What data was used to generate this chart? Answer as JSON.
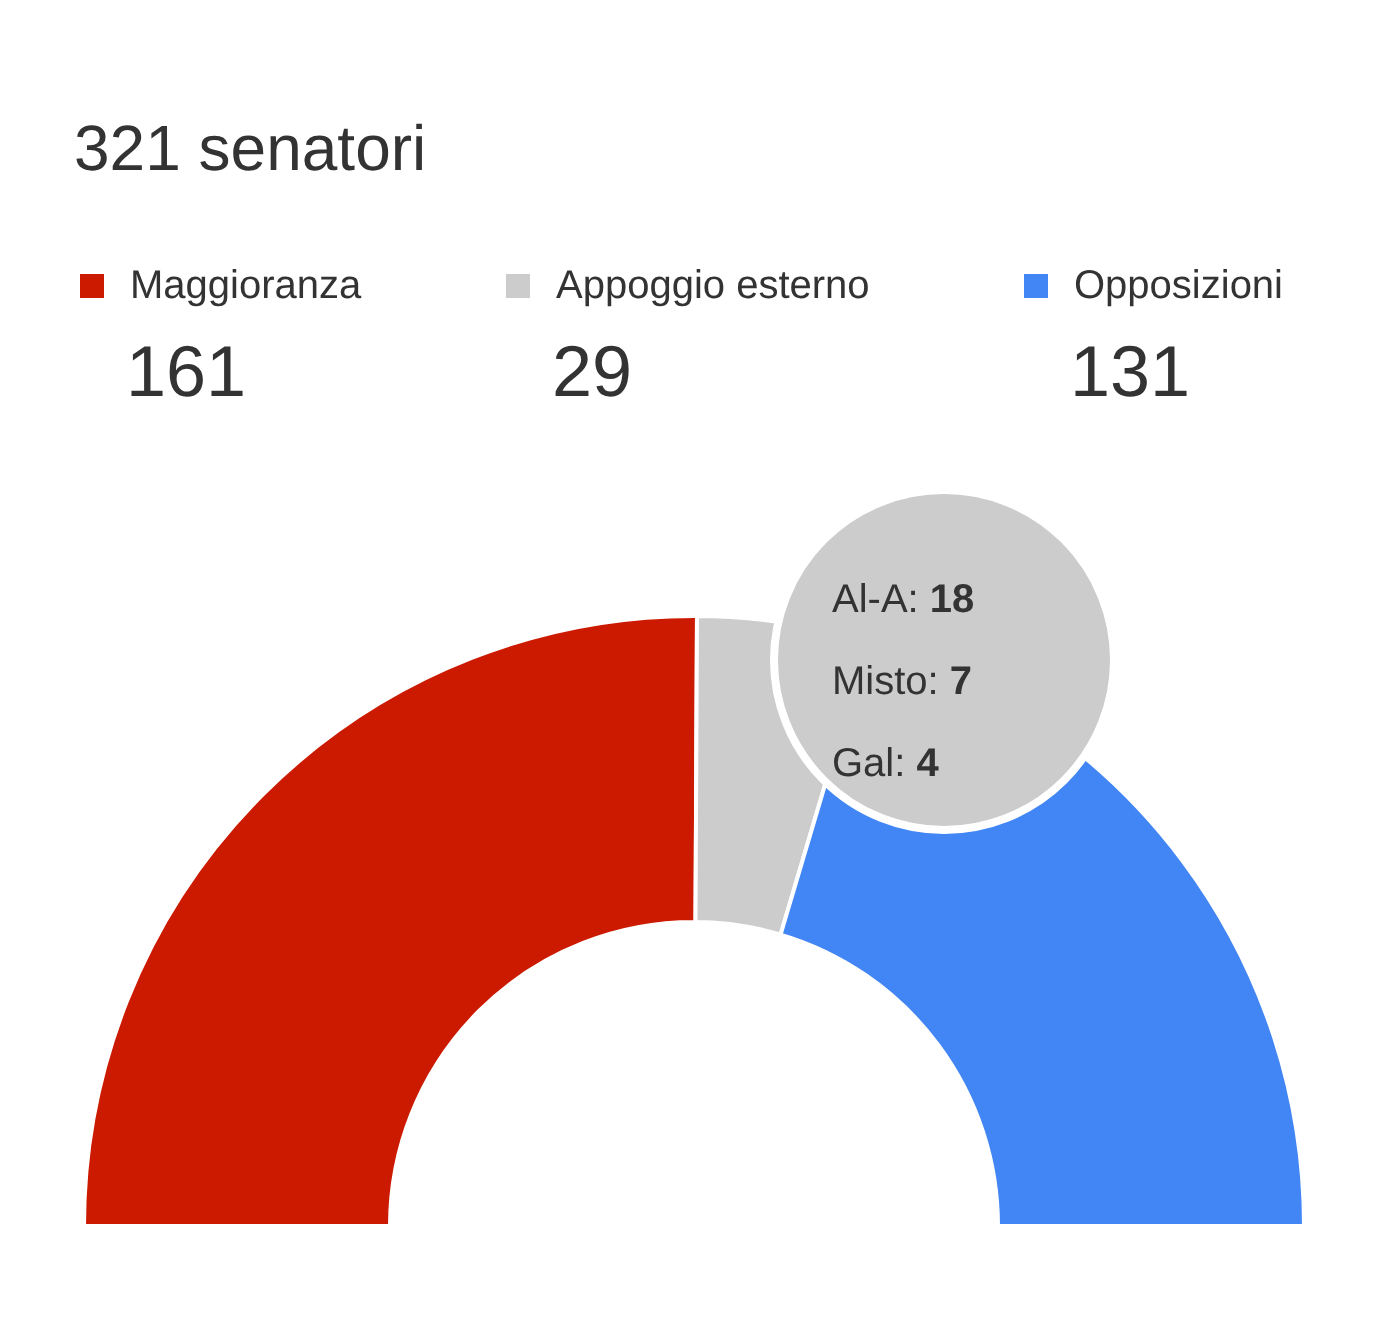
{
  "chart_data": {
    "type": "donut",
    "title": "321 senatori",
    "categories": [
      "Maggioranza",
      "Appoggio esterno",
      "Opposizioni"
    ],
    "values": [
      161,
      29,
      131
    ],
    "colors": [
      "#cc1a00",
      "#cccccc",
      "#4285f4"
    ],
    "data_labels": true,
    "legend": "top",
    "annotations": [
      "Al-A: 18",
      "Misto: 7",
      "Gal: 4"
    ]
  }
}
